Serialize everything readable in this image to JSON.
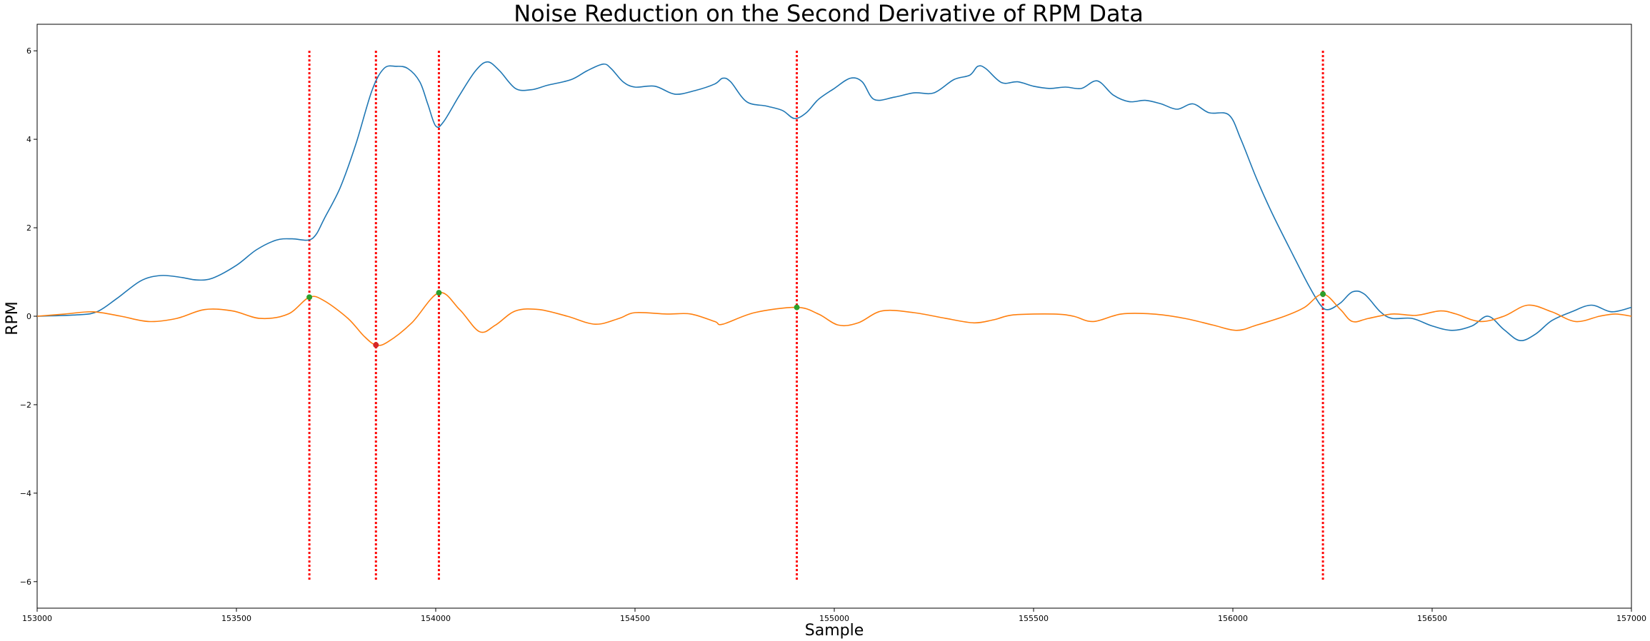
{
  "chart_data": {
    "type": "line",
    "title": "Noise Reduction on the Second Derivative of RPM Data",
    "xlabel": "Sample",
    "ylabel": "RPM",
    "xlim": [
      153000,
      157000
    ],
    "ylim": [
      -6.6,
      6.6
    ],
    "grid": false,
    "x_ticks": [
      153000,
      153500,
      154000,
      154500,
      155000,
      155500,
      156000,
      156500,
      157000
    ],
    "y_ticks": [
      -6,
      -4,
      -2,
      0,
      2,
      4,
      6
    ],
    "series": [
      {
        "color": "#1f77b4",
        "points": [
          [
            153000,
            0.0
          ],
          [
            153100,
            0.03
          ],
          [
            153150,
            0.1
          ],
          [
            153200,
            0.4
          ],
          [
            153260,
            0.8
          ],
          [
            153310,
            0.92
          ],
          [
            153360,
            0.88
          ],
          [
            153400,
            0.82
          ],
          [
            153440,
            0.86
          ],
          [
            153500,
            1.15
          ],
          [
            153550,
            1.5
          ],
          [
            153600,
            1.72
          ],
          [
            153640,
            1.75
          ],
          [
            153680,
            1.72
          ],
          [
            153700,
            1.85
          ],
          [
            153720,
            2.2
          ],
          [
            153760,
            2.9
          ],
          [
            153800,
            3.9
          ],
          [
            153840,
            5.1
          ],
          [
            153870,
            5.6
          ],
          [
            153900,
            5.65
          ],
          [
            153930,
            5.6
          ],
          [
            153960,
            5.3
          ],
          [
            153980,
            4.8
          ],
          [
            154000,
            4.3
          ],
          [
            154020,
            4.4
          ],
          [
            154060,
            5.0
          ],
          [
            154100,
            5.55
          ],
          [
            154130,
            5.75
          ],
          [
            154160,
            5.55
          ],
          [
            154200,
            5.15
          ],
          [
            154240,
            5.12
          ],
          [
            154280,
            5.22
          ],
          [
            154340,
            5.35
          ],
          [
            154380,
            5.55
          ],
          [
            154420,
            5.7
          ],
          [
            154440,
            5.6
          ],
          [
            154470,
            5.3
          ],
          [
            154500,
            5.18
          ],
          [
            154550,
            5.2
          ],
          [
            154600,
            5.02
          ],
          [
            154650,
            5.1
          ],
          [
            154700,
            5.25
          ],
          [
            154720,
            5.38
          ],
          [
            154740,
            5.3
          ],
          [
            154780,
            4.85
          ],
          [
            154830,
            4.75
          ],
          [
            154870,
            4.65
          ],
          [
            154900,
            4.47
          ],
          [
            154930,
            4.6
          ],
          [
            154960,
            4.9
          ],
          [
            155000,
            5.15
          ],
          [
            155040,
            5.38
          ],
          [
            155070,
            5.3
          ],
          [
            155100,
            4.9
          ],
          [
            155150,
            4.95
          ],
          [
            155200,
            5.05
          ],
          [
            155250,
            5.05
          ],
          [
            155300,
            5.35
          ],
          [
            155340,
            5.45
          ],
          [
            155360,
            5.65
          ],
          [
            155380,
            5.6
          ],
          [
            155420,
            5.28
          ],
          [
            155460,
            5.3
          ],
          [
            155500,
            5.2
          ],
          [
            155540,
            5.15
          ],
          [
            155580,
            5.18
          ],
          [
            155620,
            5.15
          ],
          [
            155660,
            5.32
          ],
          [
            155700,
            5.0
          ],
          [
            155740,
            4.85
          ],
          [
            155780,
            4.88
          ],
          [
            155820,
            4.8
          ],
          [
            155860,
            4.68
          ],
          [
            155900,
            4.8
          ],
          [
            155940,
            4.6
          ],
          [
            155990,
            4.55
          ],
          [
            156020,
            4.0
          ],
          [
            156060,
            3.1
          ],
          [
            156100,
            2.3
          ],
          [
            156150,
            1.4
          ],
          [
            156190,
            0.7
          ],
          [
            156220,
            0.25
          ],
          [
            156240,
            0.15
          ],
          [
            156270,
            0.3
          ],
          [
            156300,
            0.55
          ],
          [
            156330,
            0.5
          ],
          [
            156370,
            0.1
          ],
          [
            156400,
            -0.05
          ],
          [
            156450,
            -0.05
          ],
          [
            156500,
            -0.22
          ],
          [
            156550,
            -0.32
          ],
          [
            156600,
            -0.22
          ],
          [
            156640,
            0.0
          ],
          [
            156680,
            -0.3
          ],
          [
            156720,
            -0.55
          ],
          [
            156760,
            -0.4
          ],
          [
            156800,
            -0.1
          ],
          [
            156850,
            0.1
          ],
          [
            156900,
            0.25
          ],
          [
            156950,
            0.1
          ],
          [
            157000,
            0.2
          ]
        ]
      },
      {
        "color": "#ff7f0e",
        "points": [
          [
            153000,
            0.0
          ],
          [
            153070,
            0.05
          ],
          [
            153140,
            0.1
          ],
          [
            153210,
            0.0
          ],
          [
            153280,
            -0.12
          ],
          [
            153350,
            -0.05
          ],
          [
            153420,
            0.15
          ],
          [
            153490,
            0.12
          ],
          [
            153560,
            -0.05
          ],
          [
            153630,
            0.05
          ],
          [
            153683,
            0.43
          ],
          [
            153720,
            0.35
          ],
          [
            153780,
            -0.05
          ],
          [
            153820,
            -0.45
          ],
          [
            153850,
            -0.65
          ],
          [
            153880,
            -0.58
          ],
          [
            153940,
            -0.15
          ],
          [
            154008,
            0.53
          ],
          [
            154060,
            0.15
          ],
          [
            154110,
            -0.35
          ],
          [
            154150,
            -0.2
          ],
          [
            154200,
            0.12
          ],
          [
            154260,
            0.15
          ],
          [
            154330,
            0.0
          ],
          [
            154400,
            -0.18
          ],
          [
            154460,
            -0.05
          ],
          [
            154500,
            0.08
          ],
          [
            154580,
            0.05
          ],
          [
            154640,
            0.05
          ],
          [
            154700,
            -0.12
          ],
          [
            154720,
            -0.18
          ],
          [
            154800,
            0.08
          ],
          [
            154906,
            0.2
          ],
          [
            154960,
            0.05
          ],
          [
            155010,
            -0.2
          ],
          [
            155060,
            -0.15
          ],
          [
            155120,
            0.12
          ],
          [
            155200,
            0.08
          ],
          [
            155280,
            -0.05
          ],
          [
            155350,
            -0.15
          ],
          [
            155400,
            -0.08
          ],
          [
            155450,
            0.03
          ],
          [
            155550,
            0.05
          ],
          [
            155600,
            0.0
          ],
          [
            155650,
            -0.12
          ],
          [
            155720,
            0.05
          ],
          [
            155800,
            0.05
          ],
          [
            155880,
            -0.05
          ],
          [
            155950,
            -0.2
          ],
          [
            156010,
            -0.32
          ],
          [
            156060,
            -0.2
          ],
          [
            156130,
            0.0
          ],
          [
            156180,
            0.2
          ],
          [
            156226,
            0.5
          ],
          [
            156270,
            0.15
          ],
          [
            156300,
            -0.12
          ],
          [
            156340,
            -0.05
          ],
          [
            156400,
            0.05
          ],
          [
            156460,
            0.02
          ],
          [
            156520,
            0.12
          ],
          [
            156560,
            0.05
          ],
          [
            156620,
            -0.12
          ],
          [
            156680,
            0.0
          ],
          [
            156740,
            0.25
          ],
          [
            156800,
            0.1
          ],
          [
            156860,
            -0.12
          ],
          [
            156920,
            0.0
          ],
          [
            156960,
            0.05
          ],
          [
            157000,
            0.0
          ]
        ]
      }
    ],
    "vertical_lines": {
      "color": "#ff0000",
      "style": "dotted",
      "y_range": [
        -6,
        6
      ],
      "x": [
        153683,
        153850,
        154008,
        154906,
        156226
      ]
    },
    "markers": [
      {
        "x": 153683,
        "y": 0.43,
        "color": "#2ca02c"
      },
      {
        "x": 153850,
        "y": -0.65,
        "color": "#d62728"
      },
      {
        "x": 154008,
        "y": 0.53,
        "color": "#2ca02c"
      },
      {
        "x": 154906,
        "y": 0.2,
        "color": "#2ca02c"
      },
      {
        "x": 156226,
        "y": 0.5,
        "color": "#2ca02c"
      }
    ]
  }
}
